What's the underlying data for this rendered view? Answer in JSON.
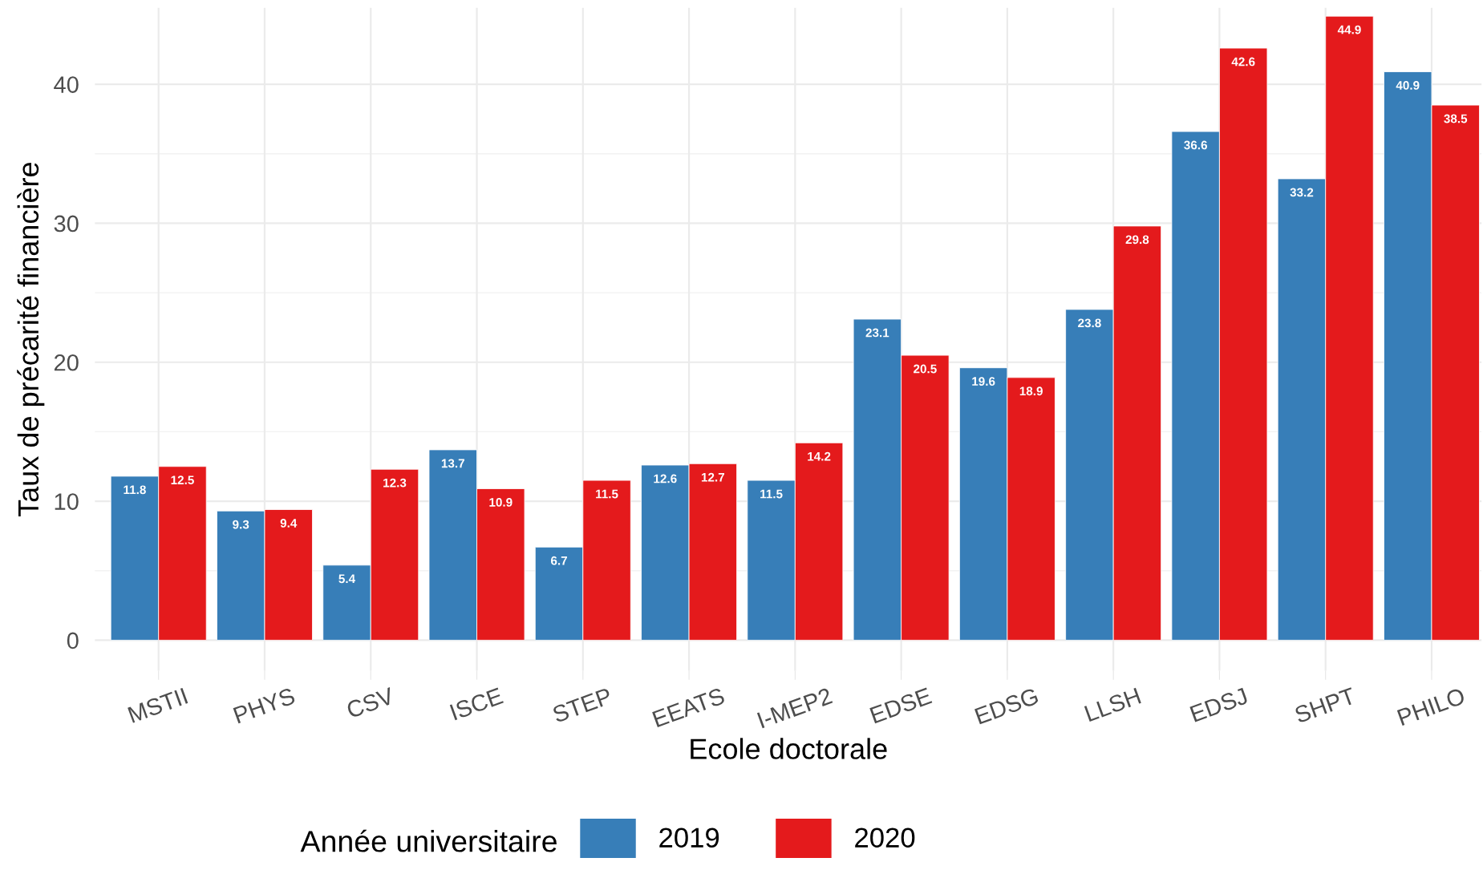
{
  "chart_data": {
    "type": "bar",
    "xlabel": "Ecole doctorale",
    "ylabel": "Taux de précarité financière",
    "legend_title": "Année universitaire",
    "categories": [
      "MSTII",
      "PHYS",
      "CSV",
      "ISCE",
      "STEP",
      "EEATS",
      "I-MEP2",
      "EDSE",
      "EDSG",
      "LLSH",
      "EDSJ",
      "SHPT",
      "PHILO"
    ],
    "series": [
      {
        "name": "2019",
        "color": "#377eb8",
        "values": [
          11.8,
          9.3,
          5.4,
          13.7,
          6.7,
          12.6,
          11.5,
          23.1,
          19.6,
          23.8,
          36.6,
          33.2,
          40.9
        ]
      },
      {
        "name": "2020",
        "color": "#e41a1c",
        "values": [
          12.5,
          9.4,
          12.3,
          10.9,
          11.5,
          12.7,
          14.2,
          20.5,
          18.9,
          29.8,
          42.6,
          44.9,
          38.5
        ]
      }
    ],
    "ylim": [
      -2.2,
      45.5
    ],
    "yticks": [
      0,
      10,
      20,
      30,
      40
    ],
    "grid": true,
    "legend": "bottom",
    "data_labels": true
  }
}
